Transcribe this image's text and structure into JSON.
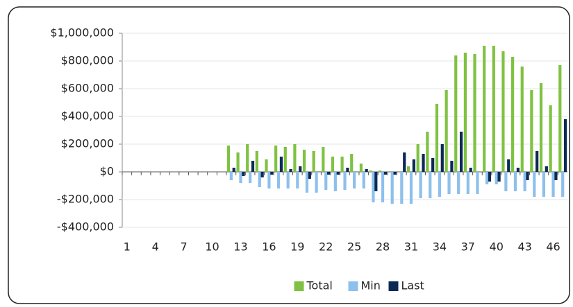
{
  "chart_data": {
    "type": "bar",
    "categories": [
      "1",
      null,
      null,
      "4",
      null,
      null,
      "7",
      null,
      null,
      "10",
      null,
      null,
      "13",
      null,
      null,
      "16",
      null,
      null,
      "19",
      null,
      null,
      "22",
      null,
      null,
      "25",
      null,
      null,
      "28",
      null,
      null,
      "31",
      null,
      null,
      "34",
      null,
      null,
      "37",
      null,
      null,
      "40",
      null,
      null,
      "43",
      null,
      null,
      "46",
      null
    ],
    "series": [
      {
        "name": "Total",
        "color": "#7fc241",
        "values": [
          null,
          null,
          null,
          null,
          null,
          null,
          null,
          null,
          null,
          null,
          null,
          190000,
          140000,
          200000,
          150000,
          90000,
          190000,
          180000,
          200000,
          160000,
          150000,
          180000,
          110000,
          110000,
          130000,
          60000,
          10000,
          10000,
          0,
          0,
          40000,
          200000,
          290000,
          490000,
          590000,
          840000,
          860000,
          850000,
          910000,
          910000,
          870000,
          830000,
          760000,
          590000,
          640000,
          480000,
          770000
        ]
      },
      {
        "name": "Min",
        "color": "#8dc0ec",
        "values": [
          null,
          null,
          null,
          null,
          null,
          null,
          null,
          null,
          null,
          null,
          null,
          -60000,
          -80000,
          -80000,
          -110000,
          -120000,
          -120000,
          -120000,
          -120000,
          -150000,
          -150000,
          -130000,
          -140000,
          -130000,
          -120000,
          -120000,
          -220000,
          -220000,
          -230000,
          -230000,
          -230000,
          -190000,
          -190000,
          -180000,
          -160000,
          -160000,
          -160000,
          -160000,
          -90000,
          -90000,
          -140000,
          -140000,
          -140000,
          -180000,
          -180000,
          -180000,
          -180000
        ]
      },
      {
        "name": "Last",
        "color": "#0c2a56",
        "values": [
          null,
          null,
          null,
          null,
          null,
          null,
          null,
          null,
          null,
          null,
          null,
          30000,
          -30000,
          80000,
          -40000,
          -20000,
          110000,
          20000,
          40000,
          -50000,
          0,
          -20000,
          -20000,
          30000,
          0,
          20000,
          -140000,
          -20000,
          -20000,
          140000,
          90000,
          130000,
          100000,
          200000,
          80000,
          290000,
          30000,
          0,
          -70000,
          -70000,
          90000,
          30000,
          -60000,
          150000,
          40000,
          -60000,
          380000
        ]
      }
    ],
    "ylim": [
      -400000,
      1000000
    ],
    "yticks": [
      {
        "value": -400000,
        "label": "-$400,000"
      },
      {
        "value": -200000,
        "label": "-$200,000"
      },
      {
        "value": 0,
        "label": "$0"
      },
      {
        "value": 200000,
        "label": "$200,000"
      },
      {
        "value": 400000,
        "label": "$400,000"
      },
      {
        "value": 600000,
        "label": "$600,000"
      },
      {
        "value": 800000,
        "label": "$800,000"
      },
      {
        "value": 1000000,
        "label": "$1,000,000"
      }
    ],
    "grid": true,
    "legend": "bottom"
  }
}
